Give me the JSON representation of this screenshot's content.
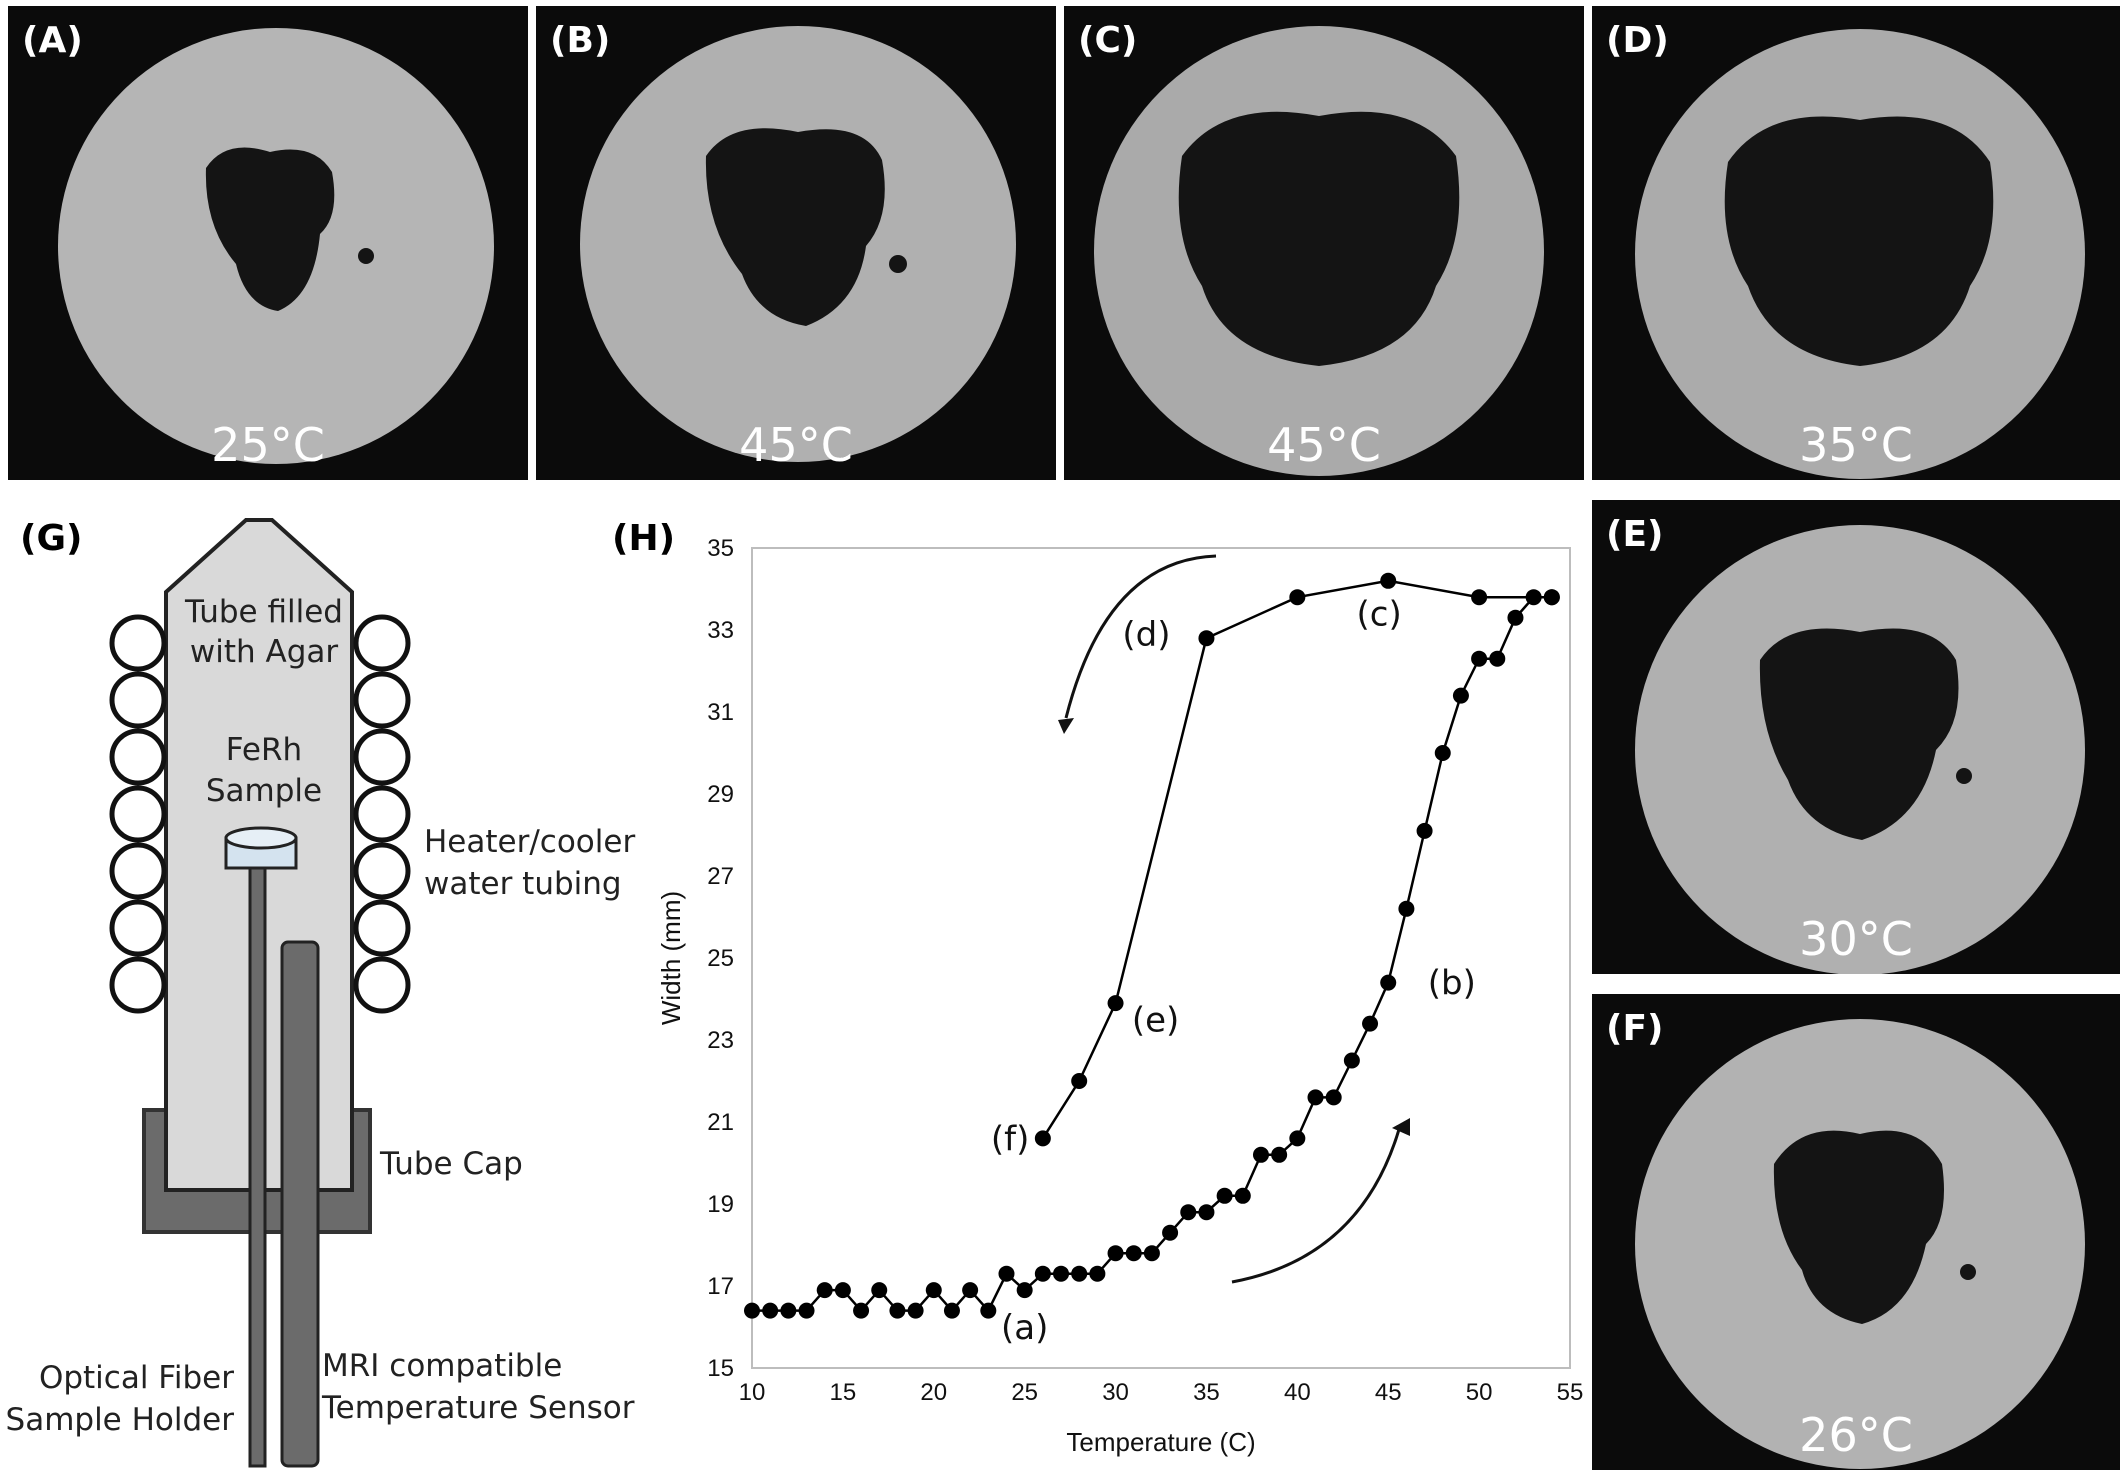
{
  "panels": [
    {
      "label": "(A)",
      "temperature": "25°C"
    },
    {
      "label": "(B)",
      "temperature": "45°C"
    },
    {
      "label": "(C)",
      "temperature": "45°C"
    },
    {
      "label": "(D)",
      "temperature": "35°C"
    },
    {
      "label": "(E)",
      "temperature": "30°C"
    },
    {
      "label": "(F)",
      "temperature": "26°C"
    }
  ],
  "diagram": {
    "label": "(G)",
    "tube_label_line1": "Tube filled",
    "tube_label_line2": "with Agar",
    "sample_label_line1": "FeRh",
    "sample_label_line2": "Sample",
    "tubing_label_line1": "Heater/cooler",
    "tubing_label_line2": "water tubing",
    "cap_label": "Tube Cap",
    "fiber_label_line1": "Optical Fiber",
    "fiber_label_line2": "Sample Holder",
    "sensor_label_line1": "MRI compatible",
    "sensor_label_line2": "Temperature Sensor"
  },
  "chart_data": {
    "panel_label": "(H)",
    "type": "line",
    "xlabel": "Temperature (C)",
    "ylabel": "Width (mm)",
    "xlim": [
      10,
      55
    ],
    "ylim": [
      15,
      35
    ],
    "xticks": [
      10,
      15,
      20,
      25,
      30,
      35,
      40,
      45,
      50,
      55
    ],
    "yticks": [
      15,
      17,
      19,
      21,
      23,
      25,
      27,
      29,
      31,
      33,
      35
    ],
    "grid": false,
    "series": [
      {
        "points": [
          [
            10,
            16.4
          ],
          [
            11,
            16.4
          ],
          [
            12,
            16.4
          ],
          [
            13,
            16.4
          ],
          [
            14,
            16.9
          ],
          [
            15,
            16.9
          ],
          [
            16,
            16.4
          ],
          [
            17,
            16.9
          ],
          [
            18,
            16.4
          ],
          [
            19,
            16.4
          ],
          [
            20,
            16.9
          ],
          [
            21,
            16.4
          ],
          [
            22,
            16.9
          ],
          [
            23,
            16.4
          ],
          [
            24,
            17.3
          ],
          [
            25,
            16.9
          ],
          [
            26,
            17.3
          ],
          [
            27,
            17.3
          ],
          [
            28,
            17.3
          ],
          [
            29,
            17.3
          ],
          [
            30,
            17.8
          ],
          [
            31,
            17.8
          ],
          [
            32,
            17.8
          ],
          [
            33,
            18.3
          ],
          [
            34,
            18.8
          ],
          [
            35,
            18.8
          ],
          [
            36,
            19.2
          ],
          [
            37,
            19.2
          ],
          [
            38,
            20.2
          ],
          [
            39,
            20.2
          ],
          [
            40,
            20.6
          ],
          [
            41,
            21.6
          ],
          [
            42,
            21.6
          ],
          [
            43,
            22.5
          ],
          [
            44,
            23.4
          ],
          [
            45,
            24.4
          ],
          [
            46,
            26.2
          ],
          [
            47,
            28.1
          ],
          [
            48,
            30.0
          ],
          [
            49,
            31.4
          ],
          [
            50,
            32.3
          ],
          [
            51,
            32.3
          ],
          [
            52,
            33.3
          ],
          [
            53,
            33.8
          ],
          [
            54,
            33.8
          ]
        ]
      },
      {
        "points": [
          [
            54,
            33.8
          ],
          [
            50,
            33.8
          ],
          [
            45,
            34.2
          ],
          [
            40,
            33.8
          ],
          [
            35,
            32.8
          ],
          [
            30,
            23.9
          ],
          [
            28,
            22.0
          ],
          [
            26,
            20.6
          ]
        ]
      }
    ],
    "annotations": [
      {
        "text": "(a)",
        "x": 25,
        "y": 16.0
      },
      {
        "text": "(b)",
        "x": 48.5,
        "y": 24.4
      },
      {
        "text": "(c)",
        "x": 44.5,
        "y": 33.4
      },
      {
        "text": "(d)",
        "x": 31.7,
        "y": 32.9
      },
      {
        "text": "(e)",
        "x": 32.2,
        "y": 23.5
      },
      {
        "text": "(f)",
        "x": 24.2,
        "y": 20.6
      }
    ]
  }
}
